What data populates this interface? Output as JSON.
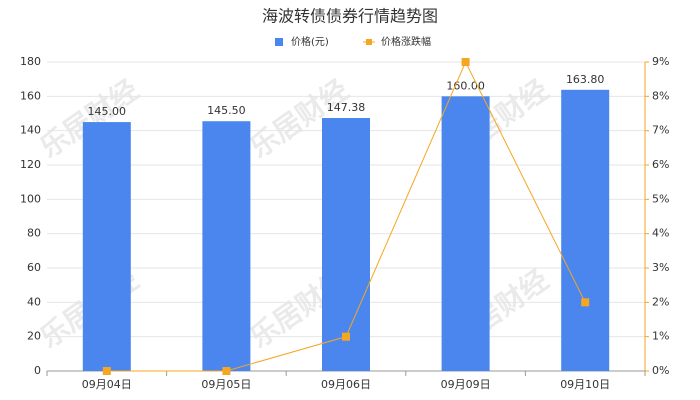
{
  "chart_data": {
    "type": "bar",
    "title": "海波转债债券行情趋势图",
    "watermark": "乐居财经",
    "categories": [
      "09月04日",
      "09月05日",
      "09月06日",
      "09月09日",
      "09月10日"
    ],
    "series": [
      {
        "name": "价格(元)",
        "type": "bar",
        "color": "#4a86ee",
        "values": [
          145,
          145.5,
          147.38,
          160,
          163.8
        ],
        "value_labels": [
          "145.00",
          "145.50",
          "147.38",
          "160.00",
          "163.80"
        ]
      },
      {
        "name": "价格涨跌幅",
        "type": "line",
        "axis": "y2",
        "color": "#f5a623",
        "values": [
          0,
          0,
          1,
          9,
          2
        ]
      }
    ],
    "ylim": [
      0,
      180
    ],
    "yticks": [
      0,
      20,
      40,
      60,
      80,
      100,
      120,
      140,
      160,
      180
    ],
    "y2lim": [
      0,
      9
    ],
    "y2ticks": [
      {
        "value": 0,
        "label": "0%"
      },
      {
        "value": 1,
        "label": "1%"
      },
      {
        "value": 2,
        "label": "2%"
      },
      {
        "value": 3,
        "label": "3%"
      },
      {
        "value": 4,
        "label": "4%"
      },
      {
        "value": 5,
        "label": "5%"
      },
      {
        "value": 6,
        "label": "6%"
      },
      {
        "value": 7,
        "label": "7%"
      },
      {
        "value": 8,
        "label": "8%"
      },
      {
        "value": 9,
        "label": "9%"
      }
    ],
    "grid": true
  }
}
